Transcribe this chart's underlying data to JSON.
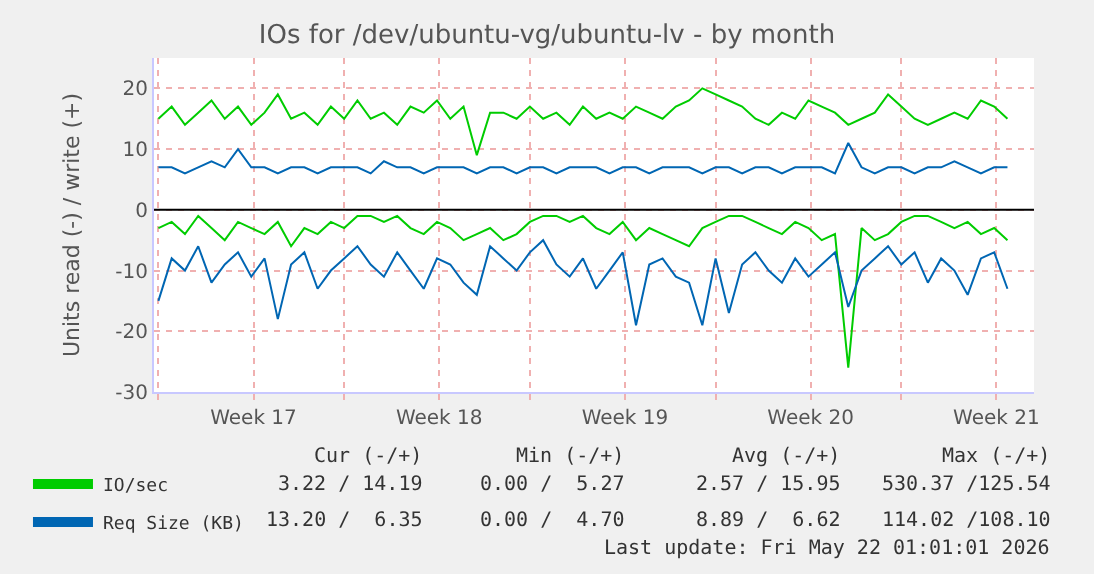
{
  "chart_data": {
    "type": "line",
    "title": "IOs for /dev/ubuntu-vg/ubuntu-lv - by month",
    "ylabel": "Units read (-) / write (+)",
    "x": [
      "2026-04-20T00:00",
      "2026-04-20T12:00",
      "2026-04-21T00:00",
      "2026-04-21T12:00",
      "2026-04-22T00:00",
      "2026-04-22T12:00",
      "2026-04-23T00:00",
      "2026-04-23T12:00",
      "2026-04-24T00:00",
      "2026-04-24T12:00",
      "2026-04-25T00:00",
      "2026-04-25T12:00",
      "2026-04-26T00:00",
      "2026-04-26T12:00",
      "2026-04-27T00:00",
      "2026-04-27T12:00",
      "2026-04-28T00:00",
      "2026-04-28T12:00",
      "2026-04-29T00:00",
      "2026-04-29T12:00",
      "2026-04-30T00:00",
      "2026-04-30T12:00",
      "2026-05-01T00:00",
      "2026-05-01T12:00",
      "2026-05-02T00:00",
      "2026-05-02T12:00",
      "2026-05-03T00:00",
      "2026-05-03T12:00",
      "2026-05-04T00:00",
      "2026-05-04T12:00",
      "2026-05-05T00:00",
      "2026-05-05T12:00",
      "2026-05-06T00:00",
      "2026-05-06T12:00",
      "2026-05-07T00:00",
      "2026-05-07T12:00",
      "2026-05-08T00:00",
      "2026-05-08T12:00",
      "2026-05-09T00:00",
      "2026-05-09T12:00",
      "2026-05-10T00:00",
      "2026-05-10T12:00",
      "2026-05-11T00:00",
      "2026-05-11T12:00",
      "2026-05-12T00:00",
      "2026-05-12T12:00",
      "2026-05-13T00:00",
      "2026-05-13T12:00",
      "2026-05-14T00:00",
      "2026-05-14T12:00",
      "2026-05-15T00:00",
      "2026-05-15T12:00",
      "2026-05-16T00:00",
      "2026-05-16T12:00",
      "2026-05-17T00:00",
      "2026-05-17T12:00",
      "2026-05-18T00:00",
      "2026-05-18T12:00",
      "2026-05-19T00:00",
      "2026-05-19T12:00",
      "2026-05-20T00:00",
      "2026-05-20T12:00",
      "2026-05-21T00:00",
      "2026-05-21T12:00",
      "2026-05-22T00:00"
    ],
    "series": [
      {
        "name": "IO/sec",
        "color": "#00cc00",
        "values": [
          15,
          17,
          14,
          16,
          18,
          15,
          17,
          14,
          16,
          19,
          15,
          16,
          14,
          17,
          15,
          18,
          15,
          16,
          14,
          17,
          16,
          18,
          15,
          17,
          9,
          16,
          16,
          15,
          17,
          15,
          16,
          14,
          17,
          15,
          16,
          15,
          17,
          16,
          15,
          17,
          18,
          20,
          19,
          18,
          17,
          15,
          14,
          16,
          15,
          18,
          17,
          16,
          14,
          15,
          16,
          19,
          17,
          15,
          14,
          15,
          16,
          15,
          18,
          17,
          15
        ]
      },
      {
        "color": "#00cc00",
        "values": [
          -3,
          -2,
          -4,
          -1,
          -3,
          -5,
          -2,
          -3,
          -4,
          -2,
          -6,
          -3,
          -4,
          -2,
          -3,
          -1,
          -1,
          -2,
          -1,
          -3,
          -4,
          -2,
          -3,
          -5,
          -4,
          -3,
          -5,
          -4,
          -2,
          -1,
          -1,
          -2,
          -1,
          -3,
          -4,
          -2,
          -5,
          -3,
          -4,
          -5,
          -6,
          -3,
          -2,
          -1,
          -1,
          -2,
          -3,
          -4,
          -2,
          -3,
          -5,
          -4,
          -26,
          -3,
          -5,
          -4,
          -2,
          -1,
          -1,
          -2,
          -3,
          -2,
          -4,
          -3,
          -5
        ]
      },
      {
        "name": "Req Size (KB)",
        "color": "#0066b3",
        "values": [
          7,
          7,
          6,
          7,
          8,
          7,
          10,
          7,
          7,
          6,
          7,
          7,
          6,
          7,
          7,
          7,
          6,
          8,
          7,
          7,
          6,
          7,
          7,
          7,
          6,
          7,
          7,
          6,
          7,
          7,
          6,
          7,
          7,
          7,
          6,
          7,
          7,
          6,
          7,
          7,
          7,
          6,
          7,
          7,
          6,
          7,
          7,
          6,
          7,
          7,
          7,
          6,
          11,
          7,
          6,
          7,
          7,
          6,
          7,
          7,
          8,
          7,
          6,
          7,
          7
        ]
      },
      {
        "color": "#0066b3",
        "values": [
          -15,
          -8,
          -10,
          -6,
          -12,
          -9,
          -7,
          -11,
          -8,
          -18,
          -9,
          -7,
          -13,
          -10,
          -8,
          -6,
          -9,
          -11,
          -7,
          -10,
          -13,
          -8,
          -9,
          -12,
          -14,
          -6,
          -8,
          -10,
          -7,
          -5,
          -9,
          -11,
          -8,
          -13,
          -10,
          -7,
          -19,
          -9,
          -8,
          -11,
          -12,
          -19,
          -8,
          -17,
          -9,
          -7,
          -10,
          -12,
          -8,
          -11,
          -9,
          -7,
          -16,
          -10,
          -8,
          -6,
          -9,
          -7,
          -12,
          -8,
          -10,
          -14,
          -8,
          -7,
          -13
        ]
      }
    ],
    "xlim": [
      "2026-04-19T20:00",
      "2026-05-23T00:00"
    ],
    "xticks": [
      {
        "value": "2026-04-20",
        "label": null
      },
      {
        "value": "2026-04-23T14:00",
        "label": "Week 17"
      },
      {
        "value": "2026-04-27",
        "label": null
      },
      {
        "value": "2026-04-30T14:00",
        "label": "Week 18"
      },
      {
        "value": "2026-05-04",
        "label": null
      },
      {
        "value": "2026-05-07T14:00",
        "label": "Week 19"
      },
      {
        "value": "2026-05-11",
        "label": null
      },
      {
        "value": "2026-05-14T14:00",
        "label": "Week 20"
      },
      {
        "value": "2026-05-18",
        "label": null
      },
      {
        "value": "2026-05-21T14:00",
        "label": "Week 21"
      }
    ],
    "ylim": [
      -30,
      25
    ],
    "yticks": [
      -30,
      -20,
      -10,
      0,
      10,
      20
    ],
    "ref_lines": [
      {
        "axis": "y",
        "value": 0,
        "color": "#000000"
      }
    ],
    "grid": true,
    "legend": "bottom",
    "marker": "none",
    "line_style": "solid",
    "annotations": [
      "Cur (-/+)",
      "Min (-/+)",
      "Avg (-/+)",
      "Max (-/+)",
      "3.22 / 14.19",
      "0.00 /  5.27",
      "2.57 / 15.95",
      "530.37 /125.54",
      "13.20 /  6.35",
      "0.00 /  4.70",
      "8.89 /  6.62",
      "114.02 /108.10",
      "Last update: Fri May 22 01:01:01 2026"
    ]
  }
}
